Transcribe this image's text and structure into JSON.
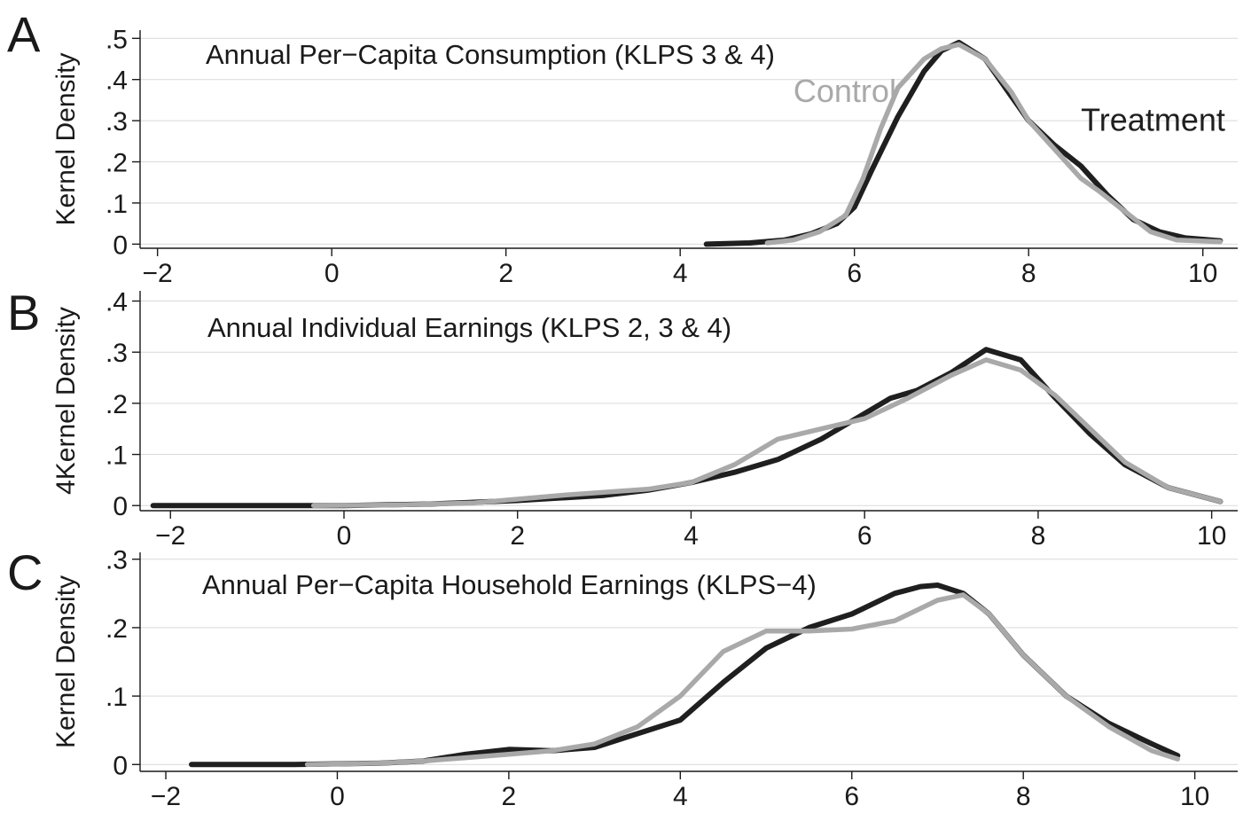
{
  "colors": {
    "treatment": "#1f1f1f",
    "control": "#a9a9a9"
  },
  "chart_data": [
    {
      "type": "line",
      "panel_letter": "A",
      "title": "Annual Per−Capita Consumption (KLPS 3 & 4)",
      "ylabel": "Kernel Density",
      "xlim": [
        -2.2,
        10.4
      ],
      "ylim": [
        -0.01,
        0.52
      ],
      "xticks": [
        -2,
        0,
        2,
        4,
        6,
        8,
        10
      ],
      "xtick_labels": [
        "−2",
        "0",
        "2",
        "4",
        "6",
        "8",
        "10"
      ],
      "yticks": [
        0,
        0.1,
        0.2,
        0.3,
        0.4,
        0.5
      ],
      "ytick_labels": [
        "0",
        ".1",
        ".2",
        ".3",
        ".4",
        ".5"
      ],
      "grid": true,
      "annotations": [
        {
          "text": "Control",
          "x": 5.3,
          "y": 0.345,
          "series": "control"
        },
        {
          "text": "Treatment",
          "x": 8.6,
          "y": 0.275,
          "series": "treatment"
        }
      ],
      "series": [
        {
          "key": "treatment",
          "x": [
            4.3,
            4.8,
            5.2,
            5.5,
            5.8,
            6.0,
            6.2,
            6.5,
            6.8,
            7.0,
            7.2,
            7.5,
            7.8,
            8.0,
            8.3,
            8.6,
            8.9,
            9.2,
            9.5,
            9.8,
            10.2
          ],
          "values": [
            0.0,
            0.003,
            0.01,
            0.025,
            0.05,
            0.09,
            0.18,
            0.31,
            0.42,
            0.47,
            0.49,
            0.45,
            0.36,
            0.3,
            0.24,
            0.19,
            0.12,
            0.06,
            0.03,
            0.015,
            0.008
          ]
        },
        {
          "key": "control",
          "x": [
            5.0,
            5.3,
            5.6,
            5.9,
            6.1,
            6.3,
            6.5,
            6.8,
            7.0,
            7.2,
            7.5,
            7.8,
            8.0,
            8.3,
            8.6,
            8.8,
            9.1,
            9.4,
            9.7,
            10.2
          ],
          "values": [
            0.003,
            0.01,
            0.03,
            0.07,
            0.16,
            0.28,
            0.38,
            0.45,
            0.475,
            0.485,
            0.45,
            0.37,
            0.3,
            0.23,
            0.16,
            0.13,
            0.08,
            0.03,
            0.01,
            0.006
          ]
        }
      ]
    },
    {
      "type": "line",
      "panel_letter": "B",
      "title": "Annual Individual Earnings (KLPS 2, 3 & 4)",
      "ylabel": "4Kernel Density",
      "xlim": [
        -2.35,
        10.3
      ],
      "ylim": [
        -0.01,
        0.42
      ],
      "xticks": [
        -2,
        0,
        2,
        4,
        6,
        8,
        10
      ],
      "xtick_labels": [
        "−2",
        "0",
        "2",
        "4",
        "6",
        "8",
        "10"
      ],
      "yticks": [
        0,
        0.1,
        0.2,
        0.3,
        0.4
      ],
      "ytick_labels": [
        "0",
        ".1",
        ".2",
        ".3",
        ".4"
      ],
      "grid": true,
      "series": [
        {
          "key": "treatment",
          "x": [
            -2.2,
            -1.0,
            0.0,
            1.0,
            2.0,
            3.0,
            3.5,
            4.0,
            4.5,
            5.0,
            5.5,
            6.0,
            6.3,
            6.6,
            7.0,
            7.4,
            7.8,
            8.2,
            8.6,
            9.0,
            9.5,
            10.1
          ],
          "values": [
            0.0,
            0.0,
            0.0,
            0.003,
            0.01,
            0.02,
            0.03,
            0.045,
            0.065,
            0.09,
            0.13,
            0.18,
            0.21,
            0.225,
            0.26,
            0.305,
            0.285,
            0.21,
            0.14,
            0.08,
            0.035,
            0.008
          ]
        },
        {
          "key": "control",
          "x": [
            -0.35,
            0.5,
            1.5,
            2.5,
            3.5,
            4.0,
            4.5,
            5.0,
            5.5,
            6.0,
            6.5,
            7.0,
            7.4,
            7.8,
            8.2,
            8.6,
            9.0,
            9.5,
            10.1
          ],
          "values": [
            0.0,
            0.001,
            0.005,
            0.02,
            0.032,
            0.045,
            0.08,
            0.13,
            0.15,
            0.17,
            0.21,
            0.255,
            0.285,
            0.265,
            0.215,
            0.15,
            0.085,
            0.035,
            0.008
          ]
        }
      ]
    },
    {
      "type": "line",
      "panel_letter": "C",
      "title": "Annual Per−Capita Household Earnings (KLPS−4)",
      "ylabel": "Kernel Density",
      "xlim": [
        -2.3,
        10.5
      ],
      "ylim": [
        -0.01,
        0.31
      ],
      "xticks": [
        -2,
        0,
        2,
        4,
        6,
        8,
        10
      ],
      "xtick_labels": [
        "−2",
        "0",
        "2",
        "4",
        "6",
        "8",
        "10"
      ],
      "yticks": [
        0,
        0.1,
        0.2,
        0.3
      ],
      "ytick_labels": [
        "0",
        ".1",
        ".2",
        ".3"
      ],
      "grid": true,
      "series": [
        {
          "key": "treatment",
          "x": [
            -1.7,
            -0.5,
            0.5,
            1.0,
            1.5,
            2.0,
            2.5,
            3.0,
            3.5,
            4.0,
            4.5,
            5.0,
            5.5,
            6.0,
            6.5,
            6.8,
            7.0,
            7.3,
            7.6,
            8.0,
            8.5,
            9.0,
            9.5,
            9.8
          ],
          "values": [
            0.0,
            0.0,
            0.002,
            0.005,
            0.015,
            0.022,
            0.02,
            0.025,
            0.045,
            0.065,
            0.12,
            0.17,
            0.2,
            0.22,
            0.25,
            0.26,
            0.262,
            0.25,
            0.22,
            0.16,
            0.1,
            0.06,
            0.03,
            0.013
          ]
        },
        {
          "key": "control",
          "x": [
            -0.35,
            0.5,
            1.0,
            1.5,
            2.0,
            2.5,
            3.0,
            3.5,
            4.0,
            4.5,
            5.0,
            5.5,
            6.0,
            6.5,
            7.0,
            7.3,
            7.6,
            8.0,
            8.5,
            9.0,
            9.5,
            9.8
          ],
          "values": [
            0.0,
            0.002,
            0.005,
            0.01,
            0.015,
            0.02,
            0.03,
            0.055,
            0.1,
            0.165,
            0.195,
            0.195,
            0.198,
            0.21,
            0.24,
            0.248,
            0.22,
            0.16,
            0.1,
            0.055,
            0.02,
            0.008
          ]
        }
      ]
    }
  ]
}
